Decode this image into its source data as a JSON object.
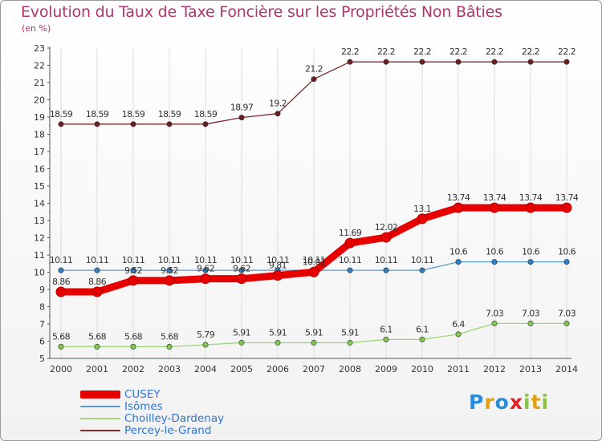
{
  "chart_data": {
    "type": "line",
    "title": "Evolution du Taux de Taxe Foncière sur les Propriétés Non Bâties",
    "ylabel": "(en %)",
    "xlabel": "",
    "categories": [
      "2000",
      "2001",
      "2002",
      "2003",
      "2004",
      "2005",
      "2006",
      "2007",
      "2008",
      "2009",
      "2010",
      "2011",
      "2012",
      "2013",
      "2014"
    ],
    "ylim": [
      5,
      23
    ],
    "yticks": [
      "5",
      "6",
      "7",
      "8",
      "9",
      "10",
      "11",
      "12",
      "13",
      "14",
      "15",
      "16",
      "17",
      "18",
      "19",
      "20",
      "21",
      "22",
      "23"
    ],
    "grid": "vertical",
    "legend": "bottom-left",
    "series": [
      {
        "name": "Percey-le-Grand",
        "color": "#7a2a2a",
        "dot": "#6a1e24",
        "values": [
          18.59,
          18.59,
          18.59,
          18.59,
          18.59,
          18.97,
          19.2,
          21.2,
          22.2,
          22.2,
          22.2,
          22.2,
          22.2,
          22.2,
          22.2
        ],
        "labels": [
          "18.59",
          "18.59",
          "18.59",
          "18.59",
          "18.59",
          "18.97",
          "19.2",
          "21.2",
          "22.2",
          "22.2",
          "22.2",
          "22.2",
          "22.2",
          "22.2",
          "22.2"
        ]
      },
      {
        "name": "Isômes",
        "color": "#5b9ad0",
        "dot": "#2f7fc6",
        "values": [
          10.11,
          10.11,
          10.11,
          10.11,
          10.11,
          10.11,
          10.11,
          10.11,
          10.11,
          10.11,
          10.11,
          10.6,
          10.6,
          10.6,
          10.6
        ],
        "labels": [
          "10.11",
          "10.11",
          "10.11",
          "10.11",
          "10.11",
          "10.11",
          "10.11",
          "10.11",
          "10.11",
          "10.11",
          "10.11",
          "10.6",
          "10.6",
          "10.6",
          "10.6"
        ]
      },
      {
        "name": "Choilley-Dardenay",
        "color": "#9fd67a",
        "dot": "#7ec94a",
        "values": [
          5.68,
          5.68,
          5.68,
          5.68,
          5.79,
          5.91,
          5.91,
          5.91,
          5.91,
          6.1,
          6.1,
          6.4,
          7.03,
          7.03,
          7.03
        ],
        "labels": [
          "5.68",
          "5.68",
          "5.68",
          "5.68",
          "5.79",
          "5.91",
          "5.91",
          "5.91",
          "5.91",
          "6.1",
          "6.1",
          "6.4",
          "7.03",
          "7.03",
          "7.03"
        ]
      },
      {
        "name": "CUSEY",
        "color": "#e60000",
        "dot": "#e60000",
        "values": [
          8.86,
          8.86,
          9.52,
          9.52,
          9.62,
          9.62,
          9.81,
          10.01,
          11.69,
          12.02,
          13.1,
          13.74,
          13.74,
          13.74,
          13.74
        ],
        "labels": [
          "8.86",
          "8.86",
          "9.52",
          "9.52",
          "9.62",
          "9.62",
          "9.81",
          "10.01",
          "11.69",
          "12.02",
          "13.1",
          "13.74",
          "13.74",
          "13.74",
          "13.74"
        ]
      }
    ]
  },
  "legend": {
    "items": [
      {
        "label": "CUSEY",
        "color": "#e60000"
      },
      {
        "label": "Isômes",
        "color": "#5b9ad0"
      },
      {
        "label": "Choilley-Dardenay",
        "color": "#9fd67a"
      },
      {
        "label": "Percey-le-Grand",
        "color": "#7a2a2a"
      }
    ]
  },
  "logo": {
    "letters": [
      "P",
      "r",
      "o",
      "x",
      "i",
      "t",
      "i"
    ],
    "colors": [
      "#2a8bd6",
      "#e3a112",
      "#2a8bd6",
      "#e0252a",
      "#8bc34a",
      "#e3a112",
      "#8bc34a"
    ]
  }
}
